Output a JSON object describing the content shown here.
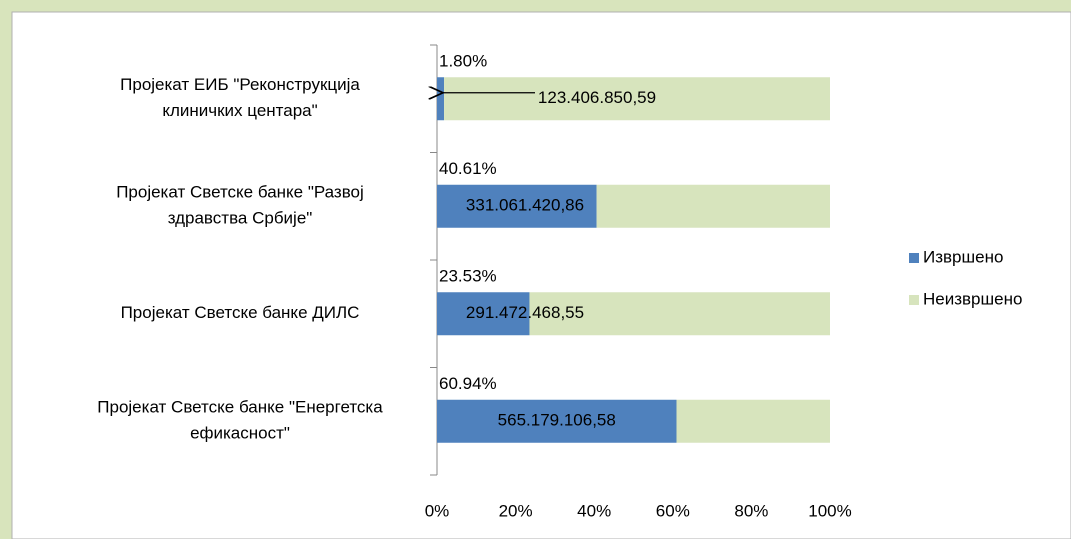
{
  "chart_data": {
    "type": "bar",
    "orientation": "horizontal",
    "stacked": true,
    "categories": [
      [
        "Пројекат ЕИБ \"Реконструкција",
        "клиничких центара\""
      ],
      [
        "Пројекат Светске банке \"Развој",
        "здравства Србије\""
      ],
      [
        "Пројекат Светске банке ДИЛС"
      ],
      [
        "Пројекат Светске банке \"Енергетска",
        "ефикасност\""
      ]
    ],
    "series": [
      {
        "name": "Извршено",
        "color": "#4f81bd",
        "values": [
          1.8,
          40.61,
          23.53,
          60.94
        ],
        "value_labels": [
          "1.80%",
          "40.61%",
          "23.53%",
          "60.94%"
        ]
      },
      {
        "name": "Неизвршено",
        "color": "#d7e4bd",
        "values": [
          98.2,
          59.39,
          76.47,
          39.06
        ]
      }
    ],
    "annotations": [
      "123.406.850,59",
      "331.061.420,86",
      "291.472.468,55",
      "565.179.106,58"
    ],
    "xlim": [
      0,
      100
    ],
    "xticks": [
      {
        "value": 0,
        "label": "0%"
      },
      {
        "value": 20,
        "label": "20%"
      },
      {
        "value": 40,
        "label": "40%"
      },
      {
        "value": 60,
        "label": "60%"
      },
      {
        "value": 80,
        "label": "80%"
      },
      {
        "value": 100,
        "label": "100%"
      }
    ],
    "legend": "right"
  }
}
